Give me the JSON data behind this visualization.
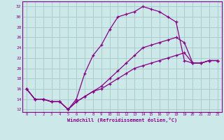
{
  "xlabel": "Windchill (Refroidissement éolien,°C)",
  "bg_color": "#cce8e8",
  "grid_color": "#aacccc",
  "line_color": "#880088",
  "ylim": [
    11.5,
    33
  ],
  "xlim": [
    -0.5,
    23.5
  ],
  "yticks": [
    12,
    14,
    16,
    18,
    20,
    22,
    24,
    26,
    28,
    30,
    32
  ],
  "xticks": [
    0,
    1,
    2,
    3,
    4,
    5,
    6,
    7,
    8,
    9,
    10,
    11,
    12,
    13,
    14,
    15,
    16,
    17,
    18,
    19,
    20,
    21,
    22,
    23
  ],
  "lines": [
    {
      "x": [
        0,
        1,
        2,
        3,
        4,
        5,
        6,
        7,
        8,
        9,
        10,
        11,
        12,
        13,
        14,
        15,
        16,
        17,
        18,
        19,
        20,
        21,
        22,
        23
      ],
      "y": [
        16,
        14,
        14,
        13.5,
        13.5,
        12,
        14,
        19,
        22.5,
        24.5,
        27.5,
        30,
        30.5,
        31,
        32,
        31.5,
        31,
        30,
        29,
        21.5,
        21,
        21,
        21.5,
        21.5
      ]
    },
    {
      "x": [
        0,
        1,
        2,
        3,
        4,
        5,
        6,
        7,
        8,
        9,
        10,
        11,
        12,
        13,
        14,
        15,
        16,
        17,
        18,
        19,
        20,
        21,
        22,
        23
      ],
      "y": [
        16,
        14,
        14,
        13.5,
        13.5,
        12,
        13.5,
        14.5,
        15.5,
        16.5,
        18,
        19.5,
        21,
        22.5,
        24,
        24.5,
        25,
        25.5,
        26,
        25,
        21,
        21,
        21.5,
        21.5
      ]
    },
    {
      "x": [
        0,
        1,
        2,
        3,
        4,
        5,
        6,
        7,
        8,
        9,
        10,
        11,
        12,
        13,
        14,
        15,
        16,
        17,
        18,
        19,
        20,
        21,
        22,
        23
      ],
      "y": [
        16,
        14,
        14,
        13.5,
        13.5,
        12,
        13.5,
        14.5,
        15.5,
        16,
        17,
        18,
        19,
        20,
        20.5,
        21,
        21.5,
        22,
        22.5,
        23,
        21,
        21,
        21.5,
        21.5
      ]
    }
  ]
}
